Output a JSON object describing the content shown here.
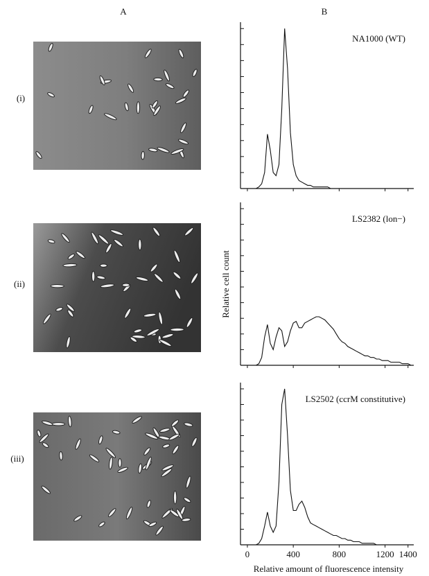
{
  "figure": {
    "panel_labels": [
      "A",
      "B"
    ],
    "row_labels": [
      "(i)",
      "(ii)",
      "(iii)"
    ]
  },
  "chart_data": [
    {
      "type": "line",
      "title": "NA1000 (WT)",
      "x": [
        0,
        25,
        50,
        75,
        100,
        125,
        150,
        175,
        200,
        225,
        250,
        275,
        300,
        325,
        350,
        375,
        400,
        425,
        450,
        475,
        500,
        525,
        550,
        575,
        600,
        625,
        650,
        675,
        700,
        725,
        750,
        775,
        800,
        825,
        850,
        875,
        900,
        925,
        950,
        975,
        1000,
        1025,
        1050,
        1075,
        1100,
        1125,
        1150,
        1175,
        1200,
        1225,
        1250,
        1275,
        1300,
        1325,
        1350,
        1375,
        1400,
        1425,
        1450
      ],
      "values": [
        0,
        0,
        0,
        0,
        1,
        3,
        10,
        34,
        24,
        10,
        8,
        15,
        50,
        100,
        75,
        35,
        15,
        8,
        5,
        4,
        3,
        2,
        2,
        1,
        1,
        1,
        1,
        1,
        1,
        0,
        0,
        0,
        0,
        0,
        0,
        0,
        0,
        0,
        0,
        0,
        0,
        0,
        0,
        0,
        0,
        0,
        0,
        0,
        0,
        0,
        0,
        0,
        0,
        0,
        0,
        0,
        0,
        0,
        0
      ],
      "xlim": [
        -60,
        1450
      ],
      "ylim": [
        0,
        104
      ],
      "xticks": [
        0,
        400,
        800,
        1200,
        1400
      ],
      "yticks": [
        0,
        10,
        20,
        30,
        40,
        50,
        60,
        70,
        80,
        90,
        100
      ],
      "xtick_labels": false
    },
    {
      "type": "line",
      "title": "LS2382 (lon−)",
      "y_label": "Relative cell count",
      "x": [
        0,
        25,
        50,
        75,
        100,
        125,
        150,
        175,
        200,
        225,
        250,
        275,
        300,
        325,
        350,
        375,
        400,
        425,
        450,
        475,
        500,
        525,
        550,
        575,
        600,
        625,
        650,
        675,
        700,
        725,
        750,
        775,
        800,
        825,
        850,
        875,
        900,
        925,
        950,
        975,
        1000,
        1025,
        1050,
        1075,
        1100,
        1125,
        1150,
        1175,
        1200,
        1225,
        1250,
        1275,
        1300,
        1325,
        1350,
        1375,
        1400,
        1425,
        1450
      ],
      "values": [
        0,
        0,
        0,
        0,
        1,
        5,
        18,
        26,
        14,
        10,
        18,
        24,
        22,
        12,
        15,
        22,
        27,
        28,
        24,
        24,
        27,
        28,
        29,
        30,
        31,
        31,
        30,
        29,
        27,
        25,
        23,
        20,
        17,
        15,
        14,
        12,
        11,
        10,
        9,
        8,
        7,
        6,
        6,
        5,
        5,
        4,
        4,
        3,
        3,
        3,
        2,
        2,
        2,
        2,
        1,
        1,
        1,
        0,
        0
      ],
      "xlim": [
        -60,
        1450
      ],
      "ylim": [
        0,
        104
      ],
      "xticks": [
        0,
        400,
        800,
        1200,
        1400
      ],
      "yticks": [
        0,
        10,
        20,
        30,
        40,
        50,
        60,
        70,
        80,
        90,
        100
      ],
      "xtick_labels": false
    },
    {
      "type": "line",
      "title": "LS2502 (ccrM constitutive)",
      "x_label": "Relative amount of fluorescence intensity",
      "x": [
        0,
        25,
        50,
        75,
        100,
        125,
        150,
        175,
        200,
        225,
        250,
        275,
        300,
        325,
        350,
        375,
        400,
        425,
        450,
        475,
        500,
        525,
        550,
        575,
        600,
        625,
        650,
        675,
        700,
        725,
        750,
        775,
        800,
        825,
        850,
        875,
        900,
        925,
        950,
        975,
        1000,
        1025,
        1050,
        1075,
        1100,
        1125,
        1150,
        1175,
        1200,
        1225,
        1250,
        1275,
        1300,
        1325,
        1350,
        1375,
        1400,
        1425,
        1450
      ],
      "values": [
        0,
        0,
        0,
        0,
        1,
        4,
        12,
        21,
        12,
        8,
        12,
        40,
        90,
        100,
        70,
        35,
        22,
        22,
        26,
        28,
        24,
        18,
        14,
        13,
        12,
        11,
        10,
        9,
        8,
        7,
        6,
        6,
        5,
        4,
        4,
        3,
        3,
        2,
        2,
        2,
        1,
        1,
        1,
        1,
        1,
        0,
        0,
        0,
        0,
        0,
        0,
        0,
        0,
        0,
        0,
        0,
        0,
        0,
        0
      ],
      "xlim": [
        -60,
        1450
      ],
      "ylim": [
        0,
        104
      ],
      "xticks": [
        0,
        400,
        800,
        1200,
        1400
      ],
      "yticks": [
        0,
        10,
        20,
        30,
        40,
        50,
        60,
        70,
        80,
        90,
        100
      ],
      "xtick_labels": true
    }
  ]
}
